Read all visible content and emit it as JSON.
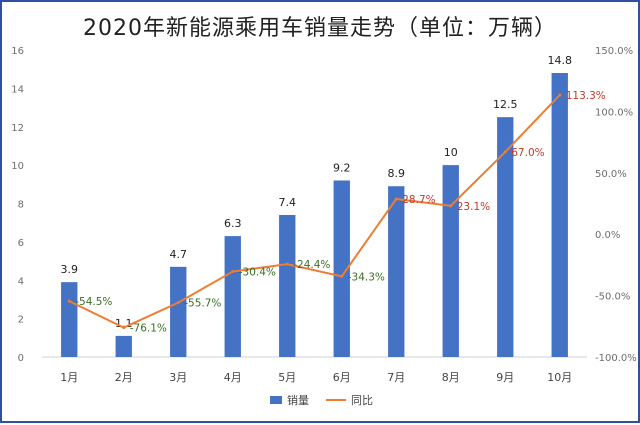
{
  "chart_data": {
    "type": "bar",
    "title": "2020年新能源乘用车销量走势（单位：万辆）",
    "categories": [
      "1月",
      "2月",
      "3月",
      "4月",
      "5月",
      "6月",
      "7月",
      "8月",
      "9月",
      "10月"
    ],
    "series": [
      {
        "name": "销量",
        "type": "bar",
        "axis": "left",
        "color": "#4472c4",
        "values": [
          3.9,
          1.1,
          4.7,
          6.3,
          7.4,
          9.2,
          8.9,
          10,
          12.5,
          14.8
        ],
        "labels": [
          "3.9",
          "1.1",
          "4.7",
          "6.3",
          "7.4",
          "9.2",
          "8.9",
          "10",
          "12.5",
          "14.8"
        ]
      },
      {
        "name": "同比",
        "type": "line",
        "axis": "right",
        "color": "#ed7d31",
        "values": [
          -54.5,
          -76.1,
          -55.7,
          -30.4,
          -24.4,
          -34.3,
          28.7,
          23.1,
          67.0,
          113.3
        ],
        "labels": [
          "-54.5%",
          "-76.1%",
          "-55.7%",
          "-30.4%",
          "-24.4%",
          "-34.3%",
          "28.7%",
          "23.1%",
          "67.0%",
          "113.3%"
        ]
      }
    ],
    "y_left": {
      "min": 0,
      "max": 16,
      "ticks": [
        0,
        2,
        4,
        6,
        8,
        10,
        12,
        14,
        16
      ]
    },
    "y_right": {
      "min": -100,
      "max": 150,
      "ticks": [
        "-100.0%",
        "-50.0%",
        "0.0%",
        "50.0%",
        "100.0%",
        "150.0%"
      ],
      "tick_values": [
        -100,
        -50,
        0,
        50,
        100,
        150
      ]
    },
    "grid": false,
    "legend_position": "bottom"
  }
}
